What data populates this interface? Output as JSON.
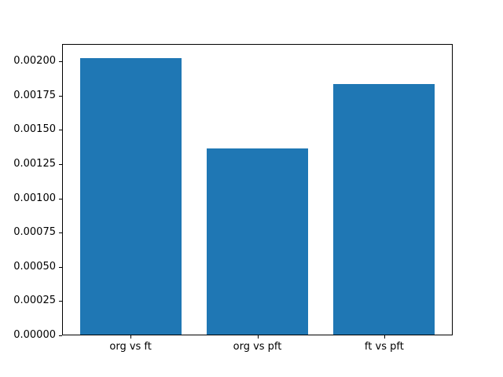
{
  "chart_data": {
    "type": "bar",
    "categories": [
      "org vs ft",
      "org vs pft",
      "ft vs pft"
    ],
    "values": [
      0.00202,
      0.00136,
      0.00183
    ],
    "title": "",
    "xlabel": "",
    "ylabel": "",
    "ylim": [
      0,
      0.002128
    ],
    "yticks": [
      0,
      0.00025,
      0.0005,
      0.00075,
      0.001,
      0.00125,
      0.0015,
      0.00175,
      0.002
    ],
    "ytick_labels": [
      "0.00000",
      "0.00025",
      "0.00050",
      "0.00075",
      "0.00100",
      "0.00125",
      "0.00150",
      "0.00175",
      "0.00200"
    ],
    "bar_color": "#1f77b4",
    "axis_color": "#000000",
    "background_color": "#ffffff",
    "grid": false,
    "legend": null
  }
}
